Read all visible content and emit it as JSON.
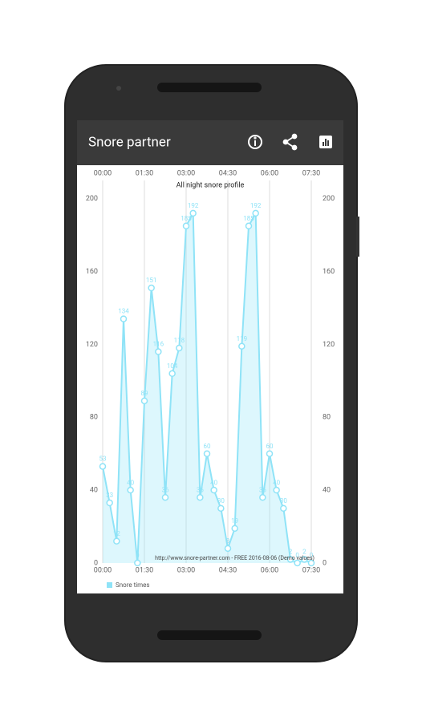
{
  "app_bar": {
    "title": "Snore partner"
  },
  "chart_data": {
    "type": "line",
    "title": "All night snore profile",
    "annotation": "http://www.snore-partner.com - FREE 2016-08-06 (Demo values)",
    "x": [
      0,
      15,
      30,
      45,
      60,
      75,
      90,
      105,
      120,
      135,
      150,
      165,
      180,
      195,
      210,
      225,
      240,
      255,
      270,
      285,
      300,
      315,
      330,
      345,
      360,
      375,
      390,
      405,
      420,
      435,
      450
    ],
    "series": [
      {
        "name": "Snore times",
        "color": "#8fe3f7",
        "values": [
          53,
          33,
          12,
          134,
          40,
          0,
          89,
          151,
          116,
          36,
          104,
          118,
          185,
          192,
          36,
          60,
          40,
          30,
          8,
          19,
          119,
          185,
          192,
          36,
          60,
          40,
          30,
          2,
          0,
          2,
          0
        ]
      }
    ],
    "xlim": [
      0,
      450
    ],
    "xticks": [
      {
        "value": 0,
        "label": "00:00"
      },
      {
        "value": 90,
        "label": "01:30"
      },
      {
        "value": 180,
        "label": "03:00"
      },
      {
        "value": 270,
        "label": "04:30"
      },
      {
        "value": 360,
        "label": "06:00"
      },
      {
        "value": 450,
        "label": "07:30"
      }
    ],
    "ylim": [
      0,
      210
    ],
    "yticks": [
      0,
      40,
      80,
      120,
      160,
      200
    ],
    "y2lim": [
      0,
      210
    ],
    "y2ticks": [
      0,
      40,
      80,
      120,
      160,
      200
    ],
    "grid": true,
    "legend": "bottom-left"
  }
}
